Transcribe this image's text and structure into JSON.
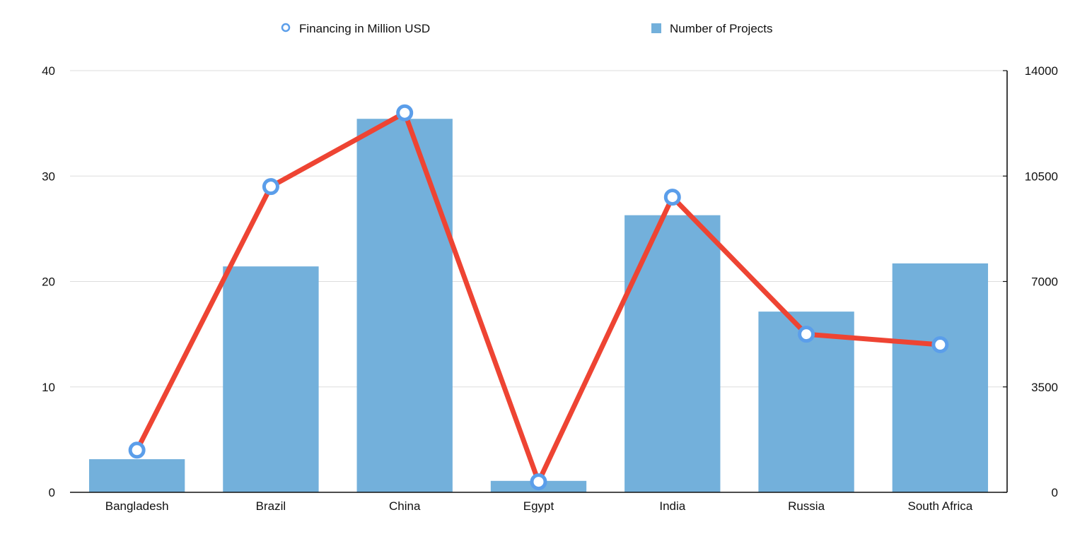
{
  "chart_data": {
    "type": "bar",
    "categories": [
      "Bangladesh",
      "Brazil",
      "China",
      "Egypt",
      "India",
      "Russia",
      "South Africa"
    ],
    "series": [
      {
        "name": "Number of Projects",
        "type": "bar",
        "axis": "right",
        "color": "#73B0DB",
        "values": [
          1100,
          7500,
          12400,
          380,
          9200,
          6000,
          7600
        ]
      },
      {
        "name": "Financing in Million USD",
        "type": "line",
        "axis": "left",
        "color": "#EE4433",
        "marker_color": "#5B9EEA",
        "values": [
          4,
          29,
          36,
          1,
          28,
          15,
          14
        ]
      }
    ],
    "y_left": {
      "label": "",
      "ylim": [
        0,
        40
      ],
      "ticks": [
        "0",
        "10",
        "20",
        "30",
        "40"
      ]
    },
    "y_right": {
      "label": "",
      "ylim": [
        0,
        14000
      ],
      "ticks": [
        "0",
        "3500",
        "7000",
        "10500",
        "14000"
      ]
    },
    "xlabel": "",
    "title": "",
    "legend_position": "top",
    "grid": true
  }
}
